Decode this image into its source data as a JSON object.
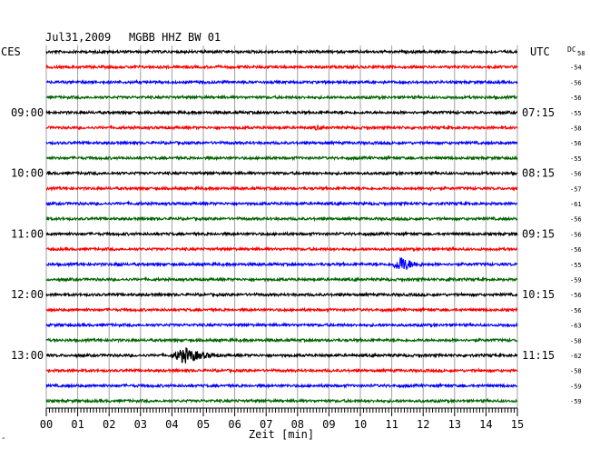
{
  "header": {
    "date": "Jul31,2009",
    "station": "MGBB HHZ BW 01",
    "left_zone": "CES",
    "right_zone": "UTC",
    "dc_label": "DC",
    "dc_top_value": "58"
  },
  "chart_data": {
    "type": "line",
    "title": "Jul31,2009   MGBB HHZ BW 01",
    "xlabel": "Zeit [min]",
    "ylabel": "",
    "xlim": [
      0,
      15
    ],
    "x_ticks": [
      "00",
      "01",
      "02",
      "03",
      "04",
      "05",
      "06",
      "07",
      "08",
      "09",
      "10",
      "11",
      "12",
      "13",
      "14",
      "15"
    ],
    "grid": true,
    "colors": [
      "#000000",
      "#ff0000",
      "#0000ff",
      "#006400"
    ],
    "left_time_labels": [
      {
        "row": 4,
        "text": "09:00"
      },
      {
        "row": 8,
        "text": "10:00"
      },
      {
        "row": 12,
        "text": "11:00"
      },
      {
        "row": 16,
        "text": "12:00"
      },
      {
        "row": 20,
        "text": "13:00"
      }
    ],
    "right_time_labels": [
      {
        "row": 4,
        "text": "07:15"
      },
      {
        "row": 8,
        "text": "08:15"
      },
      {
        "row": 12,
        "text": "09:15"
      },
      {
        "row": 16,
        "text": "10:15"
      },
      {
        "row": 20,
        "text": "11:15"
      }
    ],
    "dc_offsets": [
      "-54",
      "-56",
      "-56",
      "-55",
      "-58",
      "-56",
      "-55",
      "-56",
      "-57",
      "-61",
      "-56",
      "-56",
      "-56",
      "-55",
      "-59",
      "-56",
      "-56",
      "-63",
      "-58",
      "-62",
      "-58",
      "-59",
      "-59"
    ],
    "events": [
      {
        "row": 5,
        "center_min": 8.6,
        "width_min": 0.25,
        "amp": 0.5
      },
      {
        "row": 7,
        "center_min": 7.0,
        "width_min": 0.15,
        "amp": 0.45
      },
      {
        "row": 9,
        "center_min": 12.2,
        "width_min": 0.8,
        "amp": 0.25
      },
      {
        "row": 13,
        "center_min": 12.9,
        "width_min": 0.2,
        "amp": 0.3
      },
      {
        "row": 14,
        "center_min": 2.3,
        "width_min": 0.5,
        "amp": 0.35
      },
      {
        "row": 14,
        "center_min": 11.3,
        "width_min": 1.2,
        "amp": 1.0
      },
      {
        "row": 15,
        "center_min": 12.85,
        "width_min": 0.3,
        "amp": 0.7
      },
      {
        "row": 18,
        "center_min": 14.7,
        "width_min": 0.3,
        "amp": 0.3
      },
      {
        "row": 20,
        "center_min": 4.4,
        "width_min": 1.8,
        "amp": 1.0
      },
      {
        "row": 20,
        "center_min": 9.0,
        "width_min": 0.4,
        "amp": 0.3
      }
    ]
  }
}
